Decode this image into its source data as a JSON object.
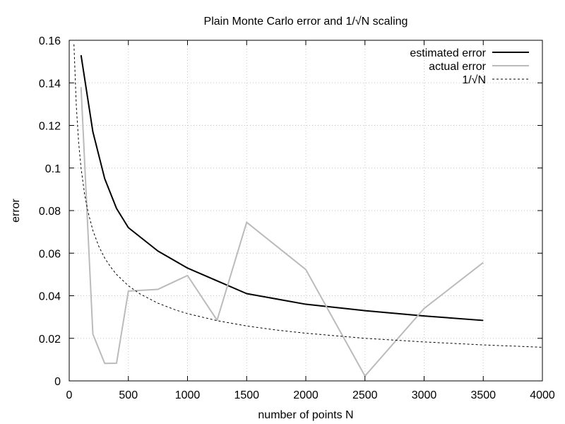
{
  "chart_data": {
    "type": "line",
    "title": "Plain Monte Carlo error and 1/√N scaling",
    "xlabel": "number of points N",
    "ylabel": "error",
    "xlim": [
      0,
      4000
    ],
    "ylim": [
      0,
      0.16
    ],
    "xticks": [
      0,
      500,
      1000,
      1500,
      2000,
      2500,
      3000,
      3500,
      4000
    ],
    "yticks": [
      0,
      0.02,
      0.04,
      0.06,
      0.08,
      0.1,
      0.12,
      0.14,
      0.16
    ],
    "xtick_labels": [
      "0",
      "500",
      "1000",
      "1500",
      "2000",
      "2500",
      "3000",
      "3500",
      "4000"
    ],
    "ytick_labels": [
      "0",
      "0.02",
      "0.04",
      "0.06",
      "0.08",
      "0.1",
      "0.12",
      "0.14",
      "0.16"
    ],
    "grid": true,
    "legend_position": "top-right",
    "series": [
      {
        "name": "estimated error",
        "style": "solid",
        "color": "#000000",
        "x": [
          100,
          200,
          300,
          400,
          500,
          750,
          1000,
          1250,
          1500,
          2000,
          2500,
          3000,
          3500
        ],
        "y": [
          0.153,
          0.117,
          0.095,
          0.081,
          0.072,
          0.061,
          0.053,
          0.047,
          0.041,
          0.036,
          0.033,
          0.0305,
          0.0284
        ]
      },
      {
        "name": "actual error",
        "style": "solid",
        "color": "#bbbbbb",
        "x": [
          100,
          200,
          300,
          400,
          500,
          750,
          1000,
          1250,
          1500,
          2000,
          2500,
          3000,
          3500
        ],
        "y": [
          0.138,
          0.022,
          0.0082,
          0.0083,
          0.0422,
          0.043,
          0.0495,
          0.0285,
          0.0745,
          0.0523,
          0.0023,
          0.034,
          0.0556
        ]
      },
      {
        "name": "1/√N",
        "style": "dashed",
        "color": "#000000",
        "x": [
          40,
          60,
          80,
          100,
          130,
          160,
          200,
          250,
          300,
          350,
          400,
          500,
          600,
          750,
          900,
          1000,
          1250,
          1500,
          1750,
          2000,
          2500,
          3000,
          3500,
          4000
        ],
        "y": [
          0.1581,
          0.1291,
          0.1118,
          0.1,
          0.0877,
          0.0791,
          0.0707,
          0.0632,
          0.0577,
          0.0535,
          0.05,
          0.0447,
          0.0408,
          0.0365,
          0.0333,
          0.0316,
          0.0283,
          0.0258,
          0.0239,
          0.0224,
          0.02,
          0.0183,
          0.0169,
          0.0158
        ]
      }
    ]
  }
}
